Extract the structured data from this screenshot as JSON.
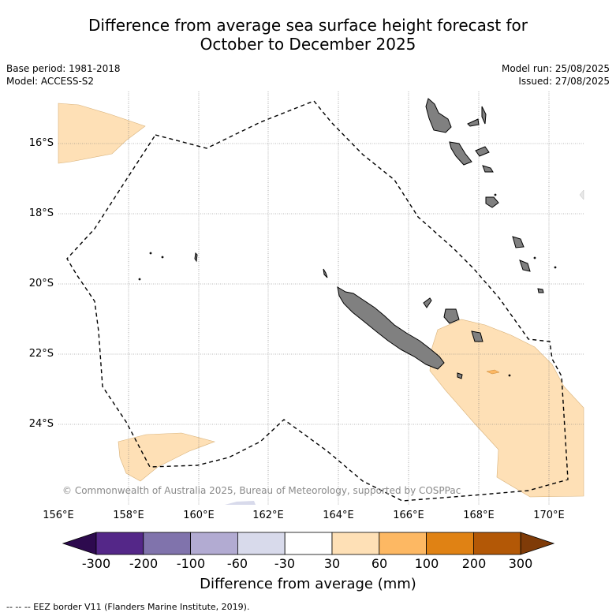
{
  "title_line1": "Difference from average sea surface height forecast for",
  "title_line2": "October to December 2025",
  "meta_left": [
    "Base period: 1981-2018",
    "Model: ACCESS-S2"
  ],
  "meta_right": [
    "Model run: 25/08/2025",
    "Issued: 27/08/2025"
  ],
  "lat_ticks": [
    "16°S",
    "18°S",
    "20°S",
    "22°S",
    "24°S"
  ],
  "lon_ticks": [
    "156°E",
    "158°E",
    "160°E",
    "162°E",
    "164°E",
    "166°E",
    "168°E",
    "170°E"
  ],
  "copyright": "© Commonwealth of Australia 2025, Bureau of Meteorology, supported by COSPPac",
  "colorbar": {
    "ticks": [
      "-300",
      "-200",
      "-100",
      "-60",
      "-30",
      "30",
      "60",
      "100",
      "200",
      "300"
    ],
    "colors": [
      "#2d0a4e",
      "#542788",
      "#8073ac",
      "#b2abd2",
      "#d8daeb",
      "#ffffff",
      "#fee0b6",
      "#fdb863",
      "#e08214",
      "#b35806",
      "#7f3b08"
    ],
    "label": "Difference from average (mm)"
  },
  "legend_note": "--  --  -- EEZ border V11 (Flanders Marine Institute, 2019).",
  "colors": {
    "land": "#808080",
    "anomaly_30_60": "#fee0b6",
    "anomaly_60_100": "#fdb863"
  }
}
